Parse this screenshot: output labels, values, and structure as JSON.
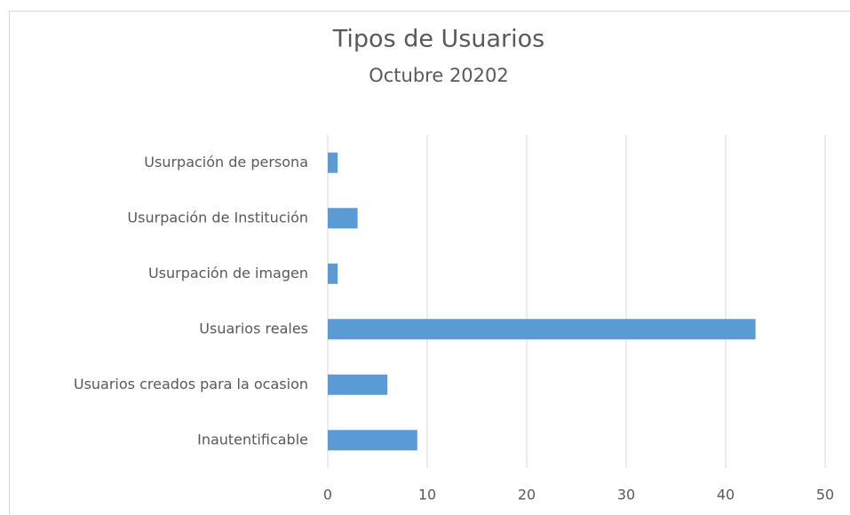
{
  "chart_data": {
    "type": "bar",
    "orientation": "horizontal",
    "title": "Tipos de Usuarios",
    "subtitle": "Octubre 20202",
    "categories": [
      "Usurpación de persona",
      "Usurpación de Institución",
      "Usurpación de imagen",
      "Usuarios reales",
      "Usuarios creados para la ocasion",
      "Inautentificable"
    ],
    "values": [
      1,
      3,
      1,
      43,
      6,
      9
    ],
    "color": "#5b9bd5",
    "xlim": [
      0,
      50
    ],
    "xticks": [
      0,
      10,
      20,
      30,
      40,
      50
    ],
    "grid": true
  }
}
